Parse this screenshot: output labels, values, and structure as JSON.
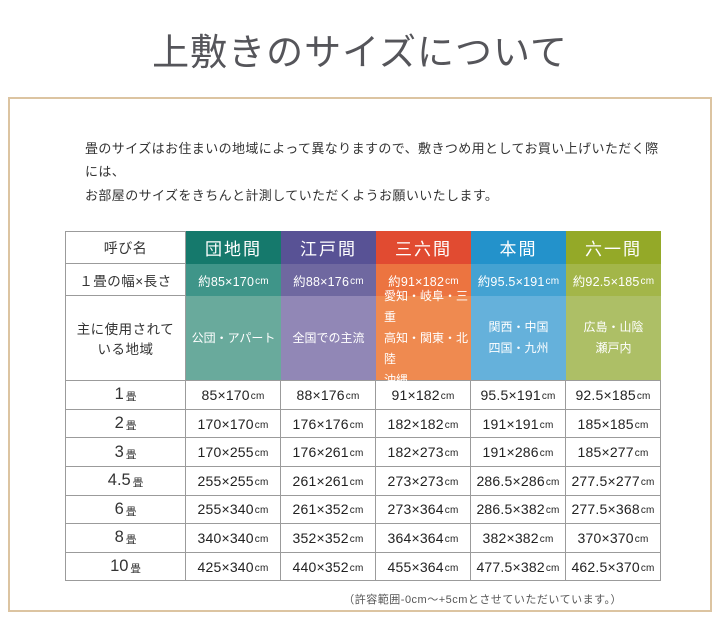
{
  "page": {
    "title": "上敷きのサイズについて",
    "intro_line1": "畳のサイズはお住まいの地域によって異なりますので、敷きつめ用としてお買い上げいただく際には、",
    "intro_line2": "お部屋のサイズをきちんと計測していただくようお願いいたします。",
    "footnote": "（許容範囲-0cm～+5cmとさせていただいています。）"
  },
  "colors": {
    "box_border": "#dcc4a1",
    "grid_line": "#9b9b9b",
    "title_text": "#55555a"
  },
  "table": {
    "unit": "cm",
    "row_suffix": "畳",
    "label_column": {
      "name_header": "呼び名",
      "width_header": "１畳の幅×長さ",
      "region_header": [
        "主に使用されて",
        "いる地域"
      ]
    },
    "columns": [
      {
        "name": "団地間",
        "header_color": "#15796c",
        "width_color": "#3f9589",
        "region_color": "#69aa9c",
        "width_value": "約85×170",
        "regions": [
          "公団・アパート"
        ],
        "region_align": "center"
      },
      {
        "name": "江戸間",
        "header_color": "#585295",
        "width_color": "#6f68a0",
        "region_color": "#9187b6",
        "width_value": "約88×176",
        "regions": [
          "全国での主流"
        ],
        "region_align": "center"
      },
      {
        "name": "三六間",
        "header_color": "#e14b31",
        "width_color": "#ec7440",
        "region_color": "#ef8a50",
        "width_value": "約91×182",
        "regions": [
          "愛知・岐阜・三重",
          "高知・関東・北陸",
          "沖縄"
        ],
        "region_align": "left"
      },
      {
        "name": "本間",
        "header_color": "#2392cb",
        "width_color": "#44a2d2",
        "region_color": "#65b1db",
        "width_value": "約95.5×191",
        "regions": [
          "関西・中国",
          "四国・九州"
        ],
        "region_align": "center"
      },
      {
        "name": "六一間",
        "header_color": "#94a928",
        "width_color": "#a3b649",
        "region_color": "#adbf66",
        "width_value": "約92.5×185",
        "regions": [
          "広島・山陰",
          "瀬戸内"
        ],
        "region_align": "center"
      }
    ],
    "rows": [
      {
        "label": "1",
        "values": [
          "85×170",
          "88×176",
          "91×182",
          "95.5×191",
          "92.5×185"
        ]
      },
      {
        "label": "2",
        "values": [
          "170×170",
          "176×176",
          "182×182",
          "191×191",
          "185×185"
        ]
      },
      {
        "label": "3",
        "values": [
          "170×255",
          "176×261",
          "182×273",
          "191×286",
          "185×277"
        ]
      },
      {
        "label": "4.5",
        "values": [
          "255×255",
          "261×261",
          "273×273",
          "286.5×286",
          "277.5×277"
        ]
      },
      {
        "label": "6",
        "values": [
          "255×340",
          "261×352",
          "273×364",
          "286.5×382",
          "277.5×368"
        ]
      },
      {
        "label": "8",
        "values": [
          "340×340",
          "352×352",
          "364×364",
          "382×382",
          "370×370"
        ]
      },
      {
        "label": "10",
        "values": [
          "425×340",
          "440×352",
          "455×364",
          "477.5×382",
          "462.5×370"
        ]
      }
    ]
  }
}
